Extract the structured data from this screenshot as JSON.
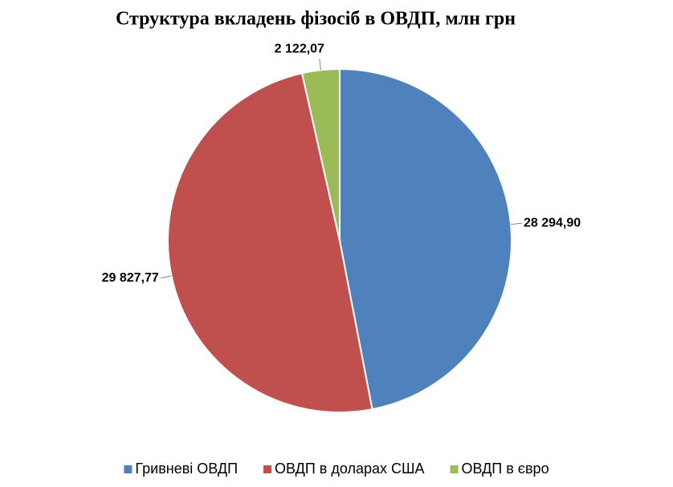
{
  "chart_data": {
    "type": "pie",
    "title": "Структура вкладень фізосіб в ОВДП, млн грн",
    "categories": [
      "Гривневі ОВДП",
      "ОВДП в доларах США",
      "ОВДП в євро"
    ],
    "values": [
      28294.9,
      29827.77,
      2122.07
    ],
    "value_labels": [
      "28 294,90",
      "29 827,77",
      "2 122,07"
    ],
    "colors": [
      "#4f81bd",
      "#c0504d",
      "#9bbb59"
    ],
    "legend": "bottom"
  }
}
